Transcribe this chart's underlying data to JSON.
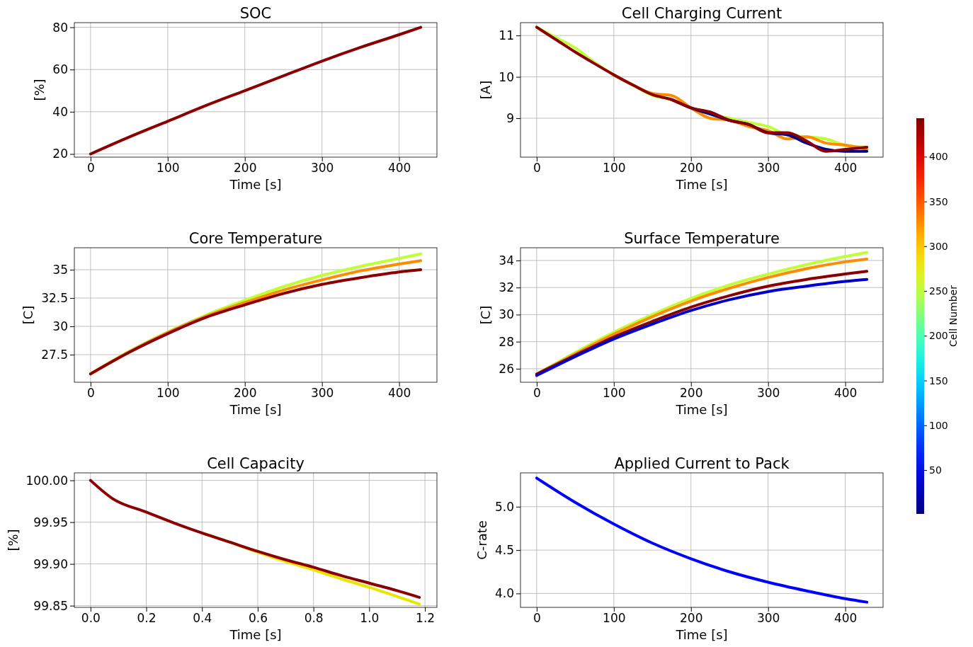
{
  "chart_data": [
    {
      "type": "line",
      "title": "SOC",
      "xlabel": "Time [s]",
      "ylabel": "[%]",
      "x": [
        0,
        50,
        100,
        150,
        200,
        250,
        300,
        350,
        400,
        428
      ],
      "xlim": [
        -21,
        449
      ],
      "xticks": [
        0,
        100,
        200,
        300,
        400
      ],
      "ylim": [
        18.5,
        82.2
      ],
      "yticks": [
        20,
        40,
        60,
        80
      ],
      "grid": true,
      "series": [
        {
          "color": "#8b0000",
          "values": [
            20,
            28,
            35.5,
            43,
            50,
            57,
            64,
            70.5,
            76.5,
            80
          ]
        }
      ]
    },
    {
      "type": "line",
      "title": "Cell Charging Current",
      "xlabel": "Time [s]",
      "ylabel": "[A]",
      "x": [
        0,
        25,
        50,
        75,
        100,
        125,
        150,
        175,
        200,
        225,
        250,
        275,
        300,
        325,
        350,
        375,
        400,
        428
      ],
      "xlim": [
        -21,
        449
      ],
      "xticks": [
        0,
        100,
        200,
        300,
        400
      ],
      "ylim": [
        8.06,
        11.31
      ],
      "yticks": [
        9,
        10,
        11
      ],
      "grid": true,
      "clabel": "Cell Number",
      "clim": [
        1,
        443
      ],
      "cticks": [
        50,
        100,
        150,
        200,
        250,
        300,
        350,
        400
      ],
      "series": [
        {
          "color": "#c0ff36",
          "values": [
            11.2,
            10.95,
            10.7,
            10.35,
            10.05,
            9.8,
            9.55,
            9.45,
            9.25,
            9.1,
            9.0,
            8.9,
            8.8,
            8.6,
            8.55,
            8.5,
            8.35,
            8.3
          ]
        },
        {
          "color": "#ff8c00",
          "values": [
            null,
            null,
            null,
            null,
            10.05,
            9.8,
            9.6,
            9.55,
            9.25,
            9.0,
            8.95,
            8.8,
            8.7,
            8.5,
            8.55,
            8.4,
            8.35,
            8.25
          ]
        },
        {
          "color": "#00008b",
          "values": [
            null,
            null,
            null,
            null,
            null,
            null,
            null,
            9.45,
            9.25,
            9.1,
            8.95,
            8.85,
            8.65,
            8.6,
            8.4,
            8.25,
            8.2,
            8.2
          ]
        },
        {
          "color": "#8b0000",
          "values": [
            11.2,
            10.9,
            10.6,
            10.32,
            10.05,
            9.8,
            9.57,
            9.45,
            9.25,
            9.15,
            8.95,
            8.85,
            8.65,
            8.65,
            8.45,
            8.2,
            8.25,
            8.3
          ]
        }
      ]
    },
    {
      "type": "line",
      "title": "Core Temperature",
      "xlabel": "Time [s]",
      "ylabel": "[C]",
      "x": [
        0,
        50,
        100,
        150,
        200,
        250,
        300,
        350,
        400,
        428
      ],
      "xlim": [
        -21,
        449
      ],
      "xticks": [
        0,
        100,
        200,
        300,
        400
      ],
      "ylim": [
        25.06,
        36.94
      ],
      "yticks": [
        27.5,
        30.0,
        32.5,
        35.0
      ],
      "grid": true,
      "series": [
        {
          "color": "#c0ff36",
          "values": [
            25.8,
            27.8,
            29.5,
            31.0,
            32.3,
            33.5,
            34.5,
            35.3,
            36.0,
            36.4
          ]
        },
        {
          "color": "#ff8c00",
          "values": [
            25.8,
            27.75,
            29.45,
            30.9,
            32.1,
            33.2,
            34.1,
            34.9,
            35.5,
            35.8
          ]
        },
        {
          "color": "#8b0000",
          "values": [
            25.8,
            27.7,
            29.35,
            30.8,
            31.9,
            32.9,
            33.7,
            34.3,
            34.8,
            35.0
          ]
        }
      ]
    },
    {
      "type": "line",
      "title": "Surface Temperature",
      "xlabel": "Time [s]",
      "ylabel": "[C]",
      "x": [
        0,
        50,
        100,
        150,
        200,
        250,
        300,
        350,
        400,
        428
      ],
      "xlim": [
        -21,
        449
      ],
      "xticks": [
        0,
        100,
        200,
        300,
        400
      ],
      "ylim": [
        25.0,
        34.94
      ],
      "yticks": [
        26,
        28,
        30,
        32,
        34
      ],
      "grid": true,
      "series": [
        {
          "color": "#c0ff36",
          "values": [
            25.6,
            27.2,
            28.7,
            30.0,
            31.2,
            32.2,
            33.0,
            33.7,
            34.3,
            34.6
          ]
        },
        {
          "color": "#ff8c00",
          "values": [
            25.6,
            27.1,
            28.55,
            29.85,
            31.0,
            31.95,
            32.75,
            33.4,
            33.9,
            34.1
          ]
        },
        {
          "color": "#8b0000",
          "values": [
            25.6,
            27.0,
            28.35,
            29.5,
            30.55,
            31.4,
            32.1,
            32.6,
            33.0,
            33.2
          ]
        },
        {
          "color": "#0000cd",
          "values": [
            25.5,
            26.9,
            28.2,
            29.3,
            30.3,
            31.1,
            31.7,
            32.1,
            32.45,
            32.6
          ]
        }
      ]
    },
    {
      "type": "line",
      "title": "Cell Capacity",
      "xlabel": "Time [s]",
      "ylabel": "[%]",
      "x": [
        0,
        0.08,
        0.2,
        0.3,
        0.4,
        0.5,
        0.6,
        0.7,
        0.8,
        0.9,
        1.0,
        1.1,
        1.18
      ],
      "xlim": [
        -0.058,
        1.243
      ],
      "xticks": [
        {
          "value": 0,
          "label": "0.0"
        },
        0.2,
        0.4,
        0.6,
        0.8,
        {
          "value": 1,
          "label": "1.0"
        },
        1.2
      ],
      "ylim": [
        99.848,
        100.009
      ],
      "yticks": [
        {
          "value": 99.85,
          "label": "99.85"
        },
        {
          "value": 99.9,
          "label": "99.90"
        },
        {
          "value": 99.95,
          "label": "99.95"
        },
        {
          "value": 100,
          "label": "100.00"
        }
      ],
      "grid": true,
      "series": [
        {
          "color": "#e6e600",
          "values": [
            null,
            null,
            null,
            null,
            99.937,
            99.926,
            99.914,
            99.903,
            99.893,
            99.882,
            99.872,
            99.861,
            99.852
          ]
        },
        {
          "color": "#8b0000",
          "values": [
            100,
            99.978,
            99.962,
            99.949,
            99.937,
            99.926,
            99.915,
            99.905,
            99.896,
            99.886,
            99.877,
            99.868,
            99.86
          ]
        }
      ]
    },
    {
      "type": "line",
      "title": "Applied Current to Pack",
      "xlabel": "Time [s]",
      "ylabel": "C-rate",
      "x": [
        0,
        50,
        100,
        150,
        200,
        250,
        300,
        350,
        400,
        428
      ],
      "xlim": [
        -21,
        449
      ],
      "xticks": [
        0,
        100,
        200,
        300,
        400
      ],
      "ylim": [
        3.84,
        5.39
      ],
      "yticks": [
        {
          "value": 4,
          "label": "4.0"
        },
        4.5,
        {
          "value": 5,
          "label": "5.0"
        }
      ],
      "grid": true,
      "series": [
        {
          "color": "#0000ff",
          "values": [
            5.33,
            5.05,
            4.8,
            4.58,
            4.4,
            4.25,
            4.13,
            4.03,
            3.94,
            3.9
          ]
        }
      ]
    }
  ]
}
